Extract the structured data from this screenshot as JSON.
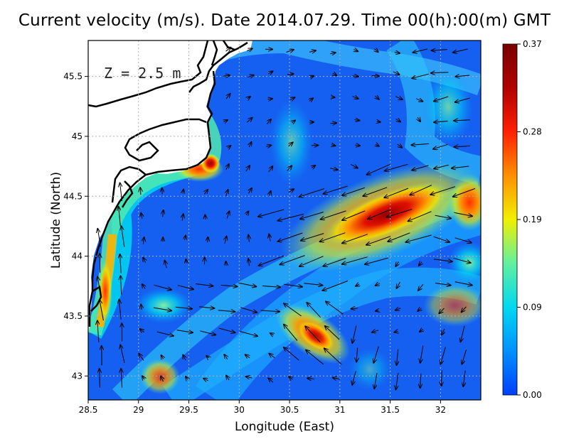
{
  "title": "Current velocity (m/s). Date 2014.07.29. Time 00(h):00(m) GMT",
  "depth_label": "Z = 2.5 m",
  "chart_data": {
    "type": "heatmap",
    "title": "Current velocity (m/s). Date 2014.07.29. Time 00(h):00(m) GMT",
    "xlabel": "Longitude (East)",
    "ylabel": "Latitude (North)",
    "xlim": [
      28.5,
      32.4
    ],
    "ylim": [
      42.8,
      45.8
    ],
    "xticks": [
      28.5,
      29,
      29.5,
      30,
      30.5,
      31,
      31.5,
      32
    ],
    "xtick_labels": [
      "28.5",
      "29",
      "29.5",
      "30",
      "30.5",
      "31",
      "31.5",
      "32"
    ],
    "yticks": [
      43,
      43.5,
      44,
      44.5,
      45,
      45.5
    ],
    "ytick_labels": [
      "43",
      "43.5",
      "44",
      "44.5",
      "45",
      "45.5"
    ],
    "grid": true,
    "colorbar": {
      "min": 0.0,
      "max": 0.37,
      "ticks": [
        "0.00",
        "0.09",
        "0.19",
        "0.28",
        "0.37"
      ],
      "colors": [
        "#0040ff",
        "#0090ff",
        "#00d8f0",
        "#60f0a0",
        "#f0f000",
        "#ff9000",
        "#ff2000",
        "#b00000",
        "#7a0000"
      ]
    },
    "hotspots": [
      {
        "lon": 31.4,
        "lat": 44.28,
        "speed": 0.36
      },
      {
        "lon": 30.85,
        "lat": 43.33,
        "speed": 0.31
      },
      {
        "lon": 29.7,
        "lat": 44.78,
        "speed": 0.3
      },
      {
        "lon": 28.75,
        "lat": 43.75,
        "speed": 0.31
      },
      {
        "lon": 32.3,
        "lat": 44.4,
        "speed": 0.28
      }
    ]
  }
}
